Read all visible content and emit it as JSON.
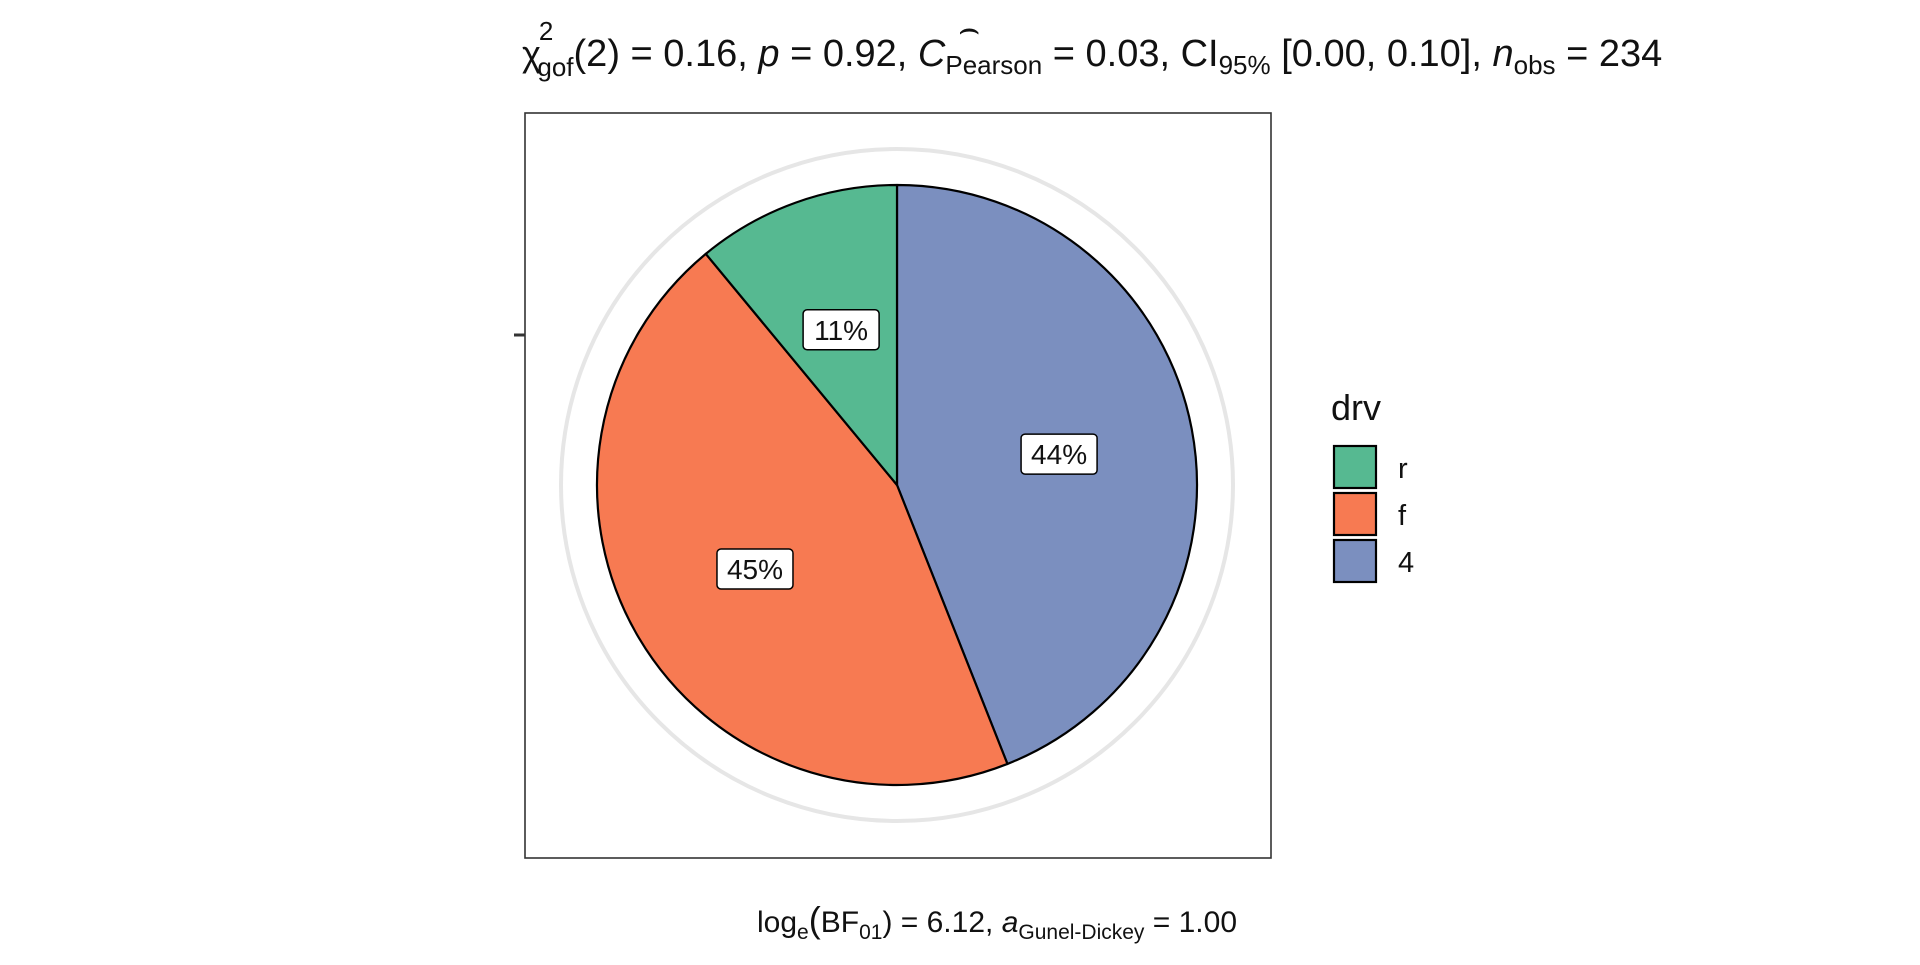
{
  "chart_data": {
    "type": "pie",
    "title": {
      "chi": "χ",
      "chi_sup": "2",
      "chi_sub": "gof",
      "df": "(2)",
      "stat_part": " = 0.16, ",
      "p_symbol": "p",
      "p_part": " = 0.92, ",
      "c_symbol": "C",
      "c_hat": "⌢",
      "c_sub": "Pearson",
      "c_part": " = 0.03, CI",
      "ci_sub": "95%",
      "ci_part": " [0.00, 0.10], ",
      "n_symbol": "n",
      "n_sub": "obs",
      "n_part": " = 234"
    },
    "caption": {
      "log_text": "log",
      "log_sub": "e",
      "open_paren": "(",
      "bf_text": "BF",
      "bf_sub": "01",
      "close_and_value": ") = 6.12, ",
      "a_symbol": "a",
      "a_sub": "Gunel-Dickey",
      "a_value": " = 1.00"
    },
    "legend": {
      "title": "drv",
      "position": "right"
    },
    "slices": [
      {
        "label": "4",
        "percent": 44,
        "percent_label": "44%",
        "color": "#7B8FBF"
      },
      {
        "label": "f",
        "percent": 45,
        "percent_label": "45%",
        "color": "#F77A52"
      },
      {
        "label": "r",
        "percent": 11,
        "percent_label": "11%",
        "color": "#56B991"
      }
    ],
    "legend_order": [
      "r",
      "f",
      "4"
    ],
    "n_obs": 234
  }
}
